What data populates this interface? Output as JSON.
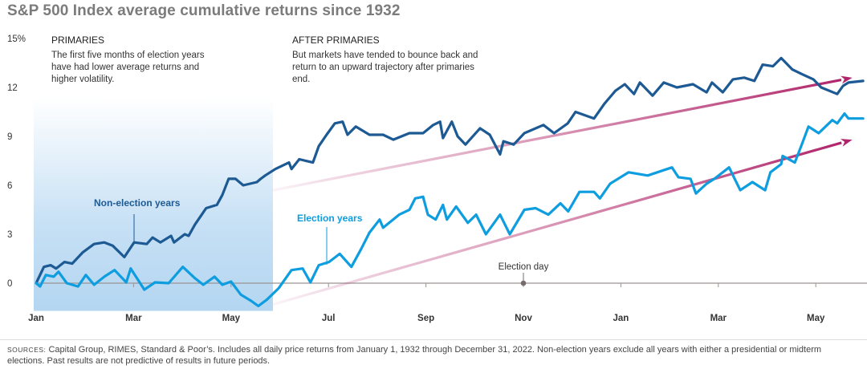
{
  "chart_data": {
    "type": "line",
    "title": "S&P 500 Index average cumulative returns since 1932",
    "xlabel": "",
    "ylabel": "",
    "x_units": "months since start of January of election year",
    "ylim": [
      -1.7,
      15
    ],
    "xlim": [
      0,
      17.1
    ],
    "y_ticks": [
      0,
      3,
      6,
      9,
      12,
      15
    ],
    "y_tick_labels": [
      "0",
      "3",
      "6",
      "9",
      "12",
      "15%"
    ],
    "x_ticks": [
      0,
      2,
      4,
      6,
      8,
      10,
      12,
      14,
      16
    ],
    "x_tick_labels": [
      "Jan",
      "Mar",
      "May",
      "Jul",
      "Sep",
      "Nov",
      "Jan",
      "Mar",
      "May"
    ],
    "grid": false,
    "series": [
      {
        "name": "Non-election years",
        "color": "#1d5a94",
        "x": [
          0,
          0.16,
          0.3,
          0.41,
          0.58,
          0.74,
          0.96,
          1.19,
          1.4,
          1.57,
          1.81,
          2.01,
          2.27,
          2.39,
          2.55,
          2.77,
          2.83,
          3.05,
          3.13,
          3.26,
          3.49,
          3.71,
          3.82,
          3.95,
          4.09,
          4.25,
          4.53,
          4.61,
          4.7,
          4.91,
          5.19,
          5.24,
          5.4,
          5.68,
          5.8,
          5.96,
          6.13,
          6.29,
          6.39,
          6.56,
          6.84,
          7.12,
          7.33,
          7.66,
          7.94,
          8.15,
          8.29,
          8.35,
          8.53,
          8.65,
          8.81,
          9.11,
          9.31,
          9.52,
          9.59,
          9.8,
          10.02,
          10.41,
          10.63,
          10.91,
          11.07,
          11.45,
          11.66,
          11.89,
          12.08,
          12.27,
          12.39,
          12.65,
          12.88,
          13.15,
          13.48,
          13.76,
          13.87,
          14.09,
          14.3,
          14.53,
          14.74,
          14.91,
          15.12,
          15.29,
          15.52,
          15.73,
          15.95,
          16.11,
          16.44,
          16.56,
          16.67,
          16.97
        ],
        "y": [
          0,
          1.0,
          1.1,
          0.9,
          1.3,
          1.2,
          1.9,
          2.4,
          2.5,
          2.3,
          1.6,
          2.5,
          2.4,
          2.8,
          2.5,
          2.9,
          2.5,
          3.0,
          2.9,
          3.6,
          4.6,
          4.8,
          5.4,
          6.4,
          6.4,
          6.0,
          6.2,
          6.4,
          6.6,
          7.0,
          7.4,
          7.0,
          7.6,
          7.4,
          8.4,
          9.1,
          9.8,
          9.9,
          9.1,
          9.6,
          9.1,
          9.1,
          8.8,
          9.2,
          9.2,
          9.7,
          9.9,
          8.9,
          9.9,
          9.0,
          8.5,
          9.5,
          9.1,
          7.9,
          8.7,
          8.5,
          9.2,
          9.7,
          9.2,
          9.8,
          10.5,
          10.1,
          11.0,
          11.8,
          12.2,
          11.6,
          12.3,
          11.5,
          12.3,
          12.0,
          12.2,
          11.7,
          12.3,
          11.7,
          12.5,
          12.6,
          12.4,
          13.4,
          13.3,
          13.8,
          13.1,
          12.8,
          12.5,
          12.0,
          11.6,
          12.1,
          12.3,
          12.4
        ]
      },
      {
        "name": "Election years",
        "color": "#0e9ddf",
        "x": [
          0,
          0.08,
          0.2,
          0.36,
          0.46,
          0.63,
          0.86,
          1.02,
          1.19,
          1.4,
          1.61,
          1.85,
          1.94,
          2.22,
          2.44,
          2.72,
          3.01,
          3.26,
          3.43,
          3.66,
          3.82,
          4.0,
          4.2,
          4.42,
          4.56,
          4.74,
          4.98,
          5.24,
          5.47,
          5.63,
          5.8,
          6.01,
          6.23,
          6.47,
          6.67,
          6.84,
          7.05,
          7.12,
          7.45,
          7.66,
          7.78,
          7.94,
          8.04,
          8.2,
          8.35,
          8.43,
          8.62,
          8.86,
          9.03,
          9.23,
          9.52,
          9.72,
          10.02,
          10.25,
          10.51,
          10.76,
          10.92,
          11.15,
          11.45,
          11.57,
          11.78,
          12.16,
          12.55,
          13.05,
          13.18,
          13.43,
          13.54,
          13.76,
          13.92,
          14.22,
          14.45,
          14.7,
          14.96,
          15.07,
          15.29,
          15.32,
          15.57,
          15.7,
          15.85,
          16.06,
          16.34,
          16.44,
          16.59,
          16.67,
          16.97
        ],
        "y": [
          0,
          -0.2,
          0.5,
          0.4,
          0.7,
          0,
          -0.2,
          0.5,
          -0.1,
          0.4,
          0.8,
          0.05,
          0.9,
          -0.4,
          0.05,
          0,
          1.0,
          0.3,
          -0.1,
          0.4,
          -0.1,
          0.1,
          -0.7,
          -1.1,
          -1.4,
          -1.0,
          -0.3,
          0.8,
          0.9,
          0.05,
          1.1,
          1.3,
          1.8,
          1.0,
          2.1,
          3.1,
          3.9,
          3.4,
          4.2,
          4.5,
          5.2,
          5.3,
          4.2,
          3.9,
          4.8,
          3.9,
          4.7,
          3.7,
          4.2,
          3.0,
          4.2,
          3.0,
          4.5,
          4.6,
          4.2,
          4.9,
          4.4,
          5.6,
          5.6,
          5.2,
          6.1,
          6.8,
          6.6,
          7.1,
          6.5,
          6.4,
          5.5,
          6.1,
          6.4,
          7.1,
          5.7,
          6.2,
          5.7,
          6.8,
          7.3,
          7.8,
          7.4,
          8.4,
          9.6,
          9.2,
          10.0,
          9.8,
          10.4,
          10.1,
          10.1
        ]
      }
    ],
    "trend_arrows": [
      {
        "name": "non-election-trend",
        "from": [
          4.86,
          5.7
        ],
        "to": [
          16.75,
          12.6
        ]
      },
      {
        "name": "election-trend",
        "from": [
          4.86,
          -1.3
        ],
        "to": [
          16.75,
          8.8
        ]
      }
    ],
    "shaded_region": {
      "label": "PRIMARIES",
      "x_from": 0,
      "x_to": 4.86
    },
    "annotations": {
      "primaries_heading": "PRIMARIES",
      "primaries_text": "The first five months of election years have had lower average returns and higher volatility.",
      "after_heading": "AFTER PRIMARIES",
      "after_text": "But markets have tended to bounce back and return to an upward trajectory after primaries end.",
      "non_election_label": "Non-election years",
      "election_label": "Election years",
      "election_day_label": "Election day",
      "election_day_x": 10
    },
    "legend": "inline labels"
  },
  "source": {
    "label": "SOURCES:",
    "text": "Capital Group, RIMES, Standard & Poor’s. Includes all daily price returns from January 1, 1932 through December 31, 2022. Non-election years exclude all years with either a presidential or midterm elections. Past results are not predictive of results in future periods."
  }
}
